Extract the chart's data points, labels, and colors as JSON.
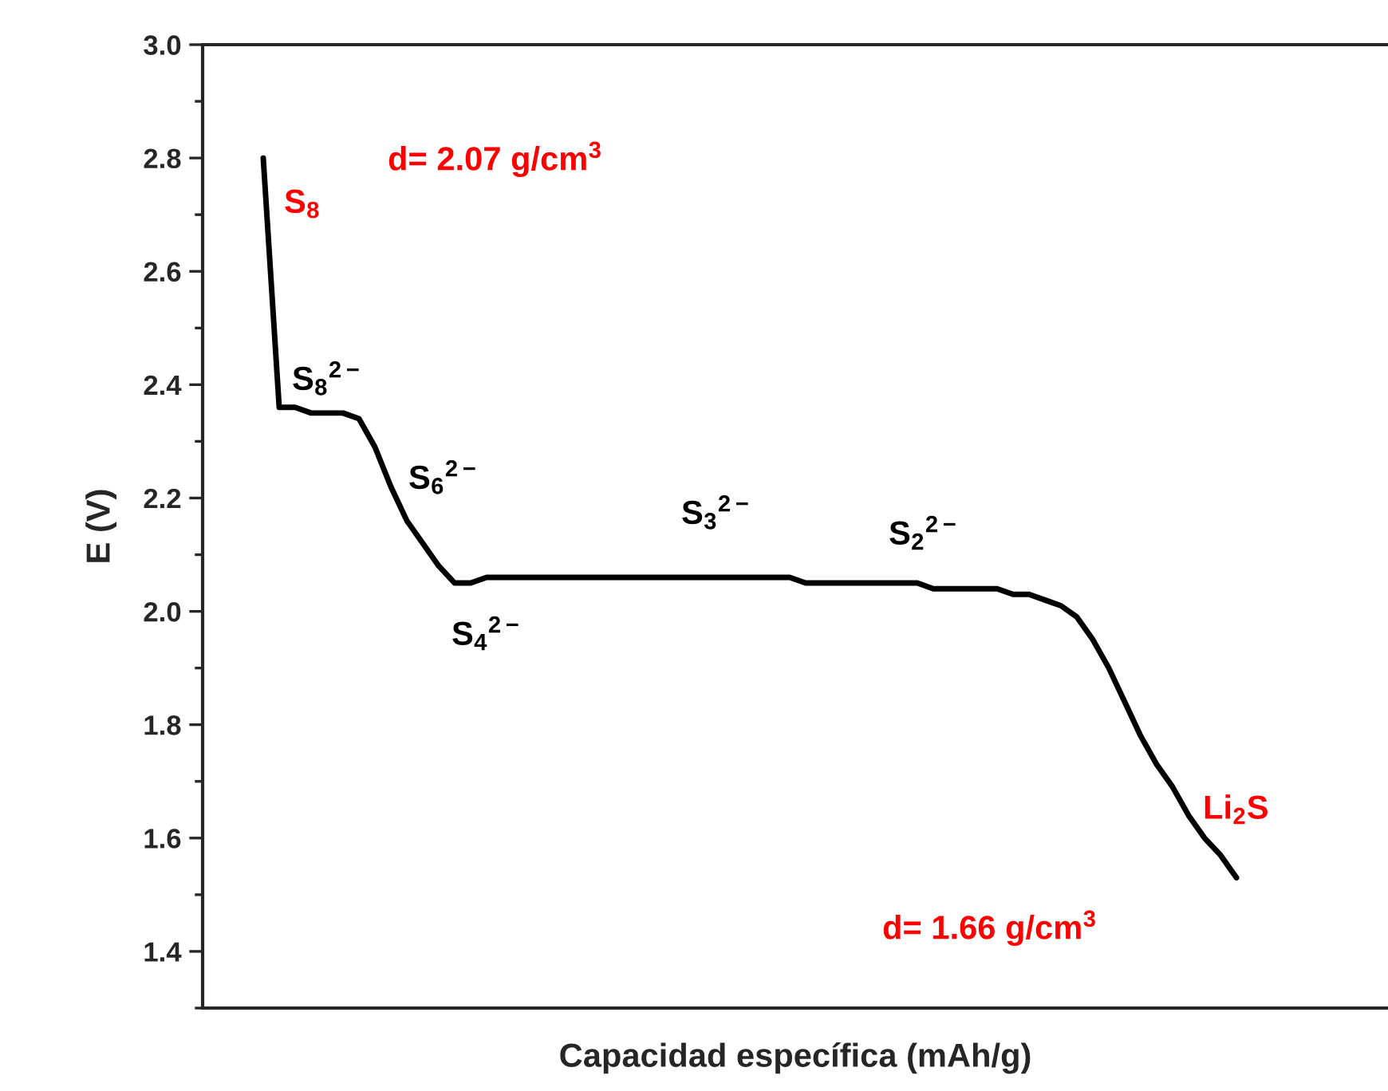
{
  "chart_data": {
    "type": "line",
    "xlabel": "Capacidad específica (mAh/g)",
    "ylabel": "E (V)",
    "categories": [
      null,
      null,
      null,
      null,
      null,
      null,
      null,
      null,
      null,
      null,
      null,
      null,
      null,
      null,
      null,
      null,
      null,
      null,
      null,
      null,
      null,
      null,
      null,
      null,
      null,
      null,
      null,
      null,
      null,
      null,
      null,
      null,
      null,
      null,
      null,
      null,
      null,
      null,
      null,
      null,
      null,
      null,
      null,
      null,
      null,
      null,
      null,
      null,
      null,
      null,
      null,
      null,
      null,
      null,
      null,
      null,
      null,
      null,
      null,
      null,
      null,
      null
    ],
    "series": [
      {
        "color": "#000000",
        "values": [
          2.8,
          2.36,
          2.36,
          2.35,
          2.35,
          2.35,
          2.34,
          2.29,
          2.22,
          2.16,
          2.12,
          2.08,
          2.05,
          2.05,
          2.06,
          2.06,
          2.06,
          2.06,
          2.06,
          2.06,
          2.06,
          2.06,
          2.06,
          2.06,
          2.06,
          2.06,
          2.06,
          2.06,
          2.06,
          2.06,
          2.06,
          2.06,
          2.06,
          2.06,
          2.05,
          2.05,
          2.05,
          2.05,
          2.05,
          2.05,
          2.05,
          2.05,
          2.04,
          2.04,
          2.04,
          2.04,
          2.04,
          2.03,
          2.03,
          2.02,
          2.01,
          1.99,
          1.95,
          1.9,
          1.84,
          1.78,
          1.73,
          1.69,
          1.64,
          1.6,
          1.57,
          1.53
        ]
      }
    ],
    "ylim": [
      1.3,
      3.0
    ],
    "yticks": [
      1.4,
      1.6,
      1.8,
      {
        "value": 2,
        "label": "2.0"
      },
      2.2,
      2.4,
      2.6,
      2.8,
      {
        "value": 3,
        "label": "3.0"
      }
    ],
    "grid": false,
    "legend": false,
    "marker": "none",
    "line_style": "solid",
    "annotations": [
      "d= 2.07 g/cm$^{3}$",
      "S$_{8}$",
      "S$_{8}$$^{2−}$",
      "S$_{6}$$^{2−}$",
      "S$_{3}$$^{2−}$",
      "S$_{2}$$^{2−}$",
      "S$_{4}$$^{2−}$",
      "Li$_{2}$S",
      "d= 1.66 g/cm$^{3}$"
    ]
  }
}
